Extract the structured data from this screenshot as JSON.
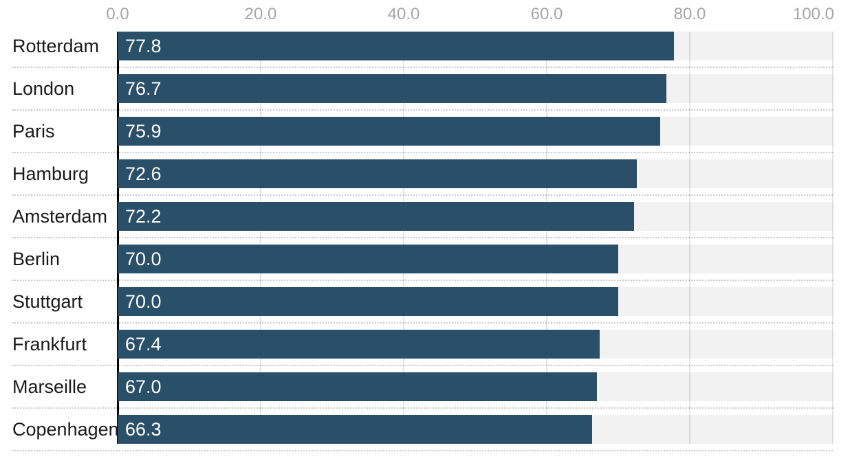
{
  "chart_data": {
    "type": "bar",
    "orientation": "horizontal",
    "title": "",
    "xlabel": "",
    "ylabel": "",
    "categories": [
      "Rotterdam",
      "London",
      "Paris",
      "Hamburg",
      "Amsterdam",
      "Berlin",
      "Stuttgart",
      "Frankfurt",
      "Marseille",
      "Copenhagen"
    ],
    "values": [
      77.8,
      76.7,
      75.9,
      72.6,
      72.2,
      70.0,
      70.0,
      67.4,
      67.0,
      66.3
    ],
    "value_labels": [
      "77.8",
      "76.7",
      "75.9",
      "72.6",
      "72.2",
      "70.0",
      "70.0",
      "67.4",
      "67.0",
      "66.3"
    ],
    "xlim": [
      0,
      100
    ],
    "x_tick_values": [
      0,
      20,
      40,
      60,
      80,
      100
    ],
    "x_tick_labels": [
      "0.0",
      "20.0",
      "40.0",
      "60.0",
      "80.0",
      "100.0"
    ],
    "grid": "vertical",
    "legend": "none",
    "axis_position": "top",
    "colors": {
      "bar": "#2a4f68",
      "track": "#f2f2f2",
      "gridline": "rgba(0,0,0,0.10)",
      "zero_line": "#000000",
      "axis_label": "#a6a6a6",
      "category_label": "#1a1a1a",
      "value_label": "#ffffff",
      "separator": "#c9c9c9",
      "background": "#ffffff"
    }
  }
}
